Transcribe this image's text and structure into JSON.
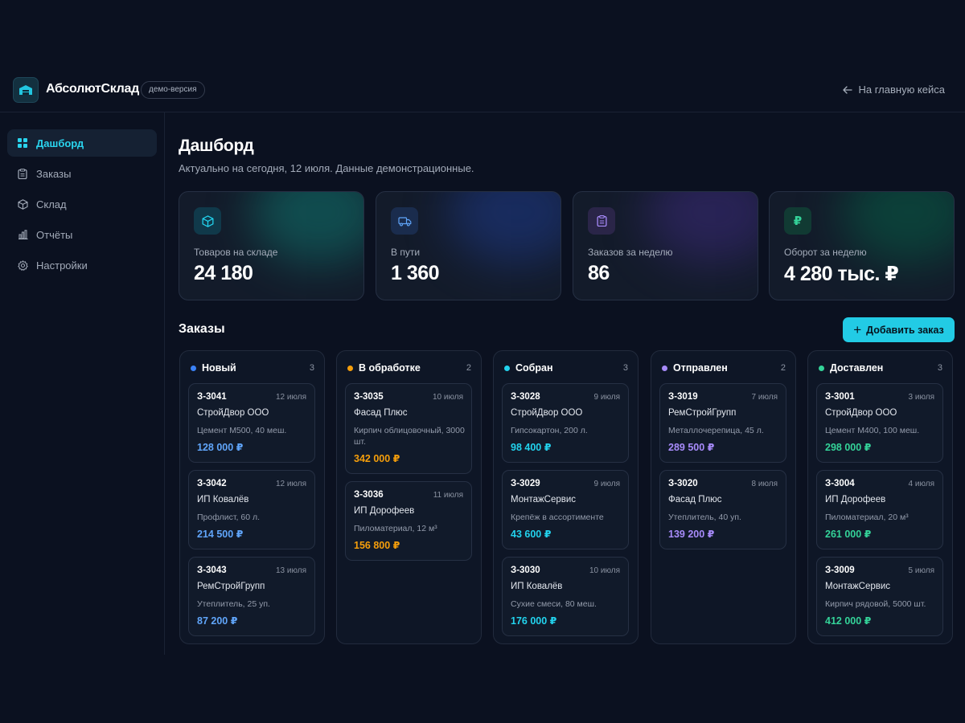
{
  "app": {
    "brand": "АбсолютСклад",
    "badge": "демо-версия",
    "back_link": "На главную кейса"
  },
  "sidebar": {
    "items": [
      {
        "label": "Дашборд",
        "icon": "grid-icon",
        "active": true
      },
      {
        "label": "Заказы",
        "icon": "clipboard-icon",
        "active": false
      },
      {
        "label": "Склад",
        "icon": "box-icon",
        "active": false
      },
      {
        "label": "Отчёты",
        "icon": "bar-chart-icon",
        "active": false
      },
      {
        "label": "Настройки",
        "icon": "gear-icon",
        "active": false
      }
    ]
  },
  "page": {
    "title": "Дашборд",
    "subtitle": "Актуально на сегодня, 12 июля. Данные демонстрационные."
  },
  "stats": [
    {
      "label": "Товаров на складе",
      "value": "24 180",
      "icon": "box-icon",
      "color": "#22d3ee"
    },
    {
      "label": "В пути",
      "value": "1 360",
      "icon": "truck-icon",
      "color": "#60a5fa"
    },
    {
      "label": "Заказов за неделю",
      "value": "86",
      "icon": "clipboard-icon",
      "color": "#a78bfa"
    },
    {
      "label": "Оборот за неделю",
      "value": "4 280 тыс. ₽",
      "icon": "ruble-icon",
      "color": "#34d399"
    }
  ],
  "orders": {
    "title": "Заказы",
    "add_button": "Добавить заказ",
    "columns": [
      {
        "title": "Новый",
        "count": "3",
        "color": "#3b82f6",
        "amount_color": "#60a5fa",
        "cards": [
          {
            "id": "З-3041",
            "date": "12 июля",
            "client": "СтройДвор ООО",
            "desc": "Цемент М500, 40 меш.",
            "amount": "128 000 ₽"
          },
          {
            "id": "З-3042",
            "date": "12 июля",
            "client": "ИП Ковалёв",
            "desc": "Профлист, 60 л.",
            "amount": "214 500 ₽"
          },
          {
            "id": "З-3043",
            "date": "13 июля",
            "client": "РемСтройГрупп",
            "desc": "Утеплитель, 25 уп.",
            "amount": "87 200 ₽"
          }
        ]
      },
      {
        "title": "В обработке",
        "count": "2",
        "color": "#f59e0b",
        "amount_color": "#f59e0b",
        "cards": [
          {
            "id": "З-3035",
            "date": "10 июля",
            "client": "Фасад Плюс",
            "desc": "Кирпич облицовочный, 3000 шт.",
            "amount": "342 000 ₽"
          },
          {
            "id": "З-3036",
            "date": "11 июля",
            "client": "ИП Дорофеев",
            "desc": "Пиломатериал, 12 м³",
            "amount": "156 800 ₽"
          }
        ]
      },
      {
        "title": "Собран",
        "count": "3",
        "color": "#22d3ee",
        "amount_color": "#22d3ee",
        "cards": [
          {
            "id": "З-3028",
            "date": "9 июля",
            "client": "СтройДвор ООО",
            "desc": "Гипсокартон, 200 л.",
            "amount": "98 400 ₽"
          },
          {
            "id": "З-3029",
            "date": "9 июля",
            "client": "МонтажСервис",
            "desc": "Крепёж в ассортименте",
            "amount": "43 600 ₽"
          },
          {
            "id": "З-3030",
            "date": "10 июля",
            "client": "ИП Ковалёв",
            "desc": "Сухие смеси, 80 меш.",
            "amount": "176 000 ₽"
          }
        ]
      },
      {
        "title": "Отправлен",
        "count": "2",
        "color": "#a78bfa",
        "amount_color": "#a78bfa",
        "cards": [
          {
            "id": "З-3019",
            "date": "7 июля",
            "client": "РемСтройГрупп",
            "desc": "Металлочерепица, 45 л.",
            "amount": "289 500 ₽"
          },
          {
            "id": "З-3020",
            "date": "8 июля",
            "client": "Фасад Плюс",
            "desc": "Утеплитель, 40 уп.",
            "amount": "139 200 ₽"
          }
        ]
      },
      {
        "title": "Доставлен",
        "count": "3",
        "color": "#34d399",
        "amount_color": "#34d399",
        "cards": [
          {
            "id": "З-3001",
            "date": "3 июля",
            "client": "СтройДвор ООО",
            "desc": "Цемент М400, 100 меш.",
            "amount": "298 000 ₽"
          },
          {
            "id": "З-3004",
            "date": "4 июля",
            "client": "ИП Дорофеев",
            "desc": "Пиломатериал, 20 м³",
            "amount": "261 000 ₽"
          },
          {
            "id": "З-3009",
            "date": "5 июля",
            "client": "МонтажСервис",
            "desc": "Кирпич рядовой, 5000 шт.",
            "amount": "412 000 ₽"
          }
        ]
      }
    ]
  }
}
